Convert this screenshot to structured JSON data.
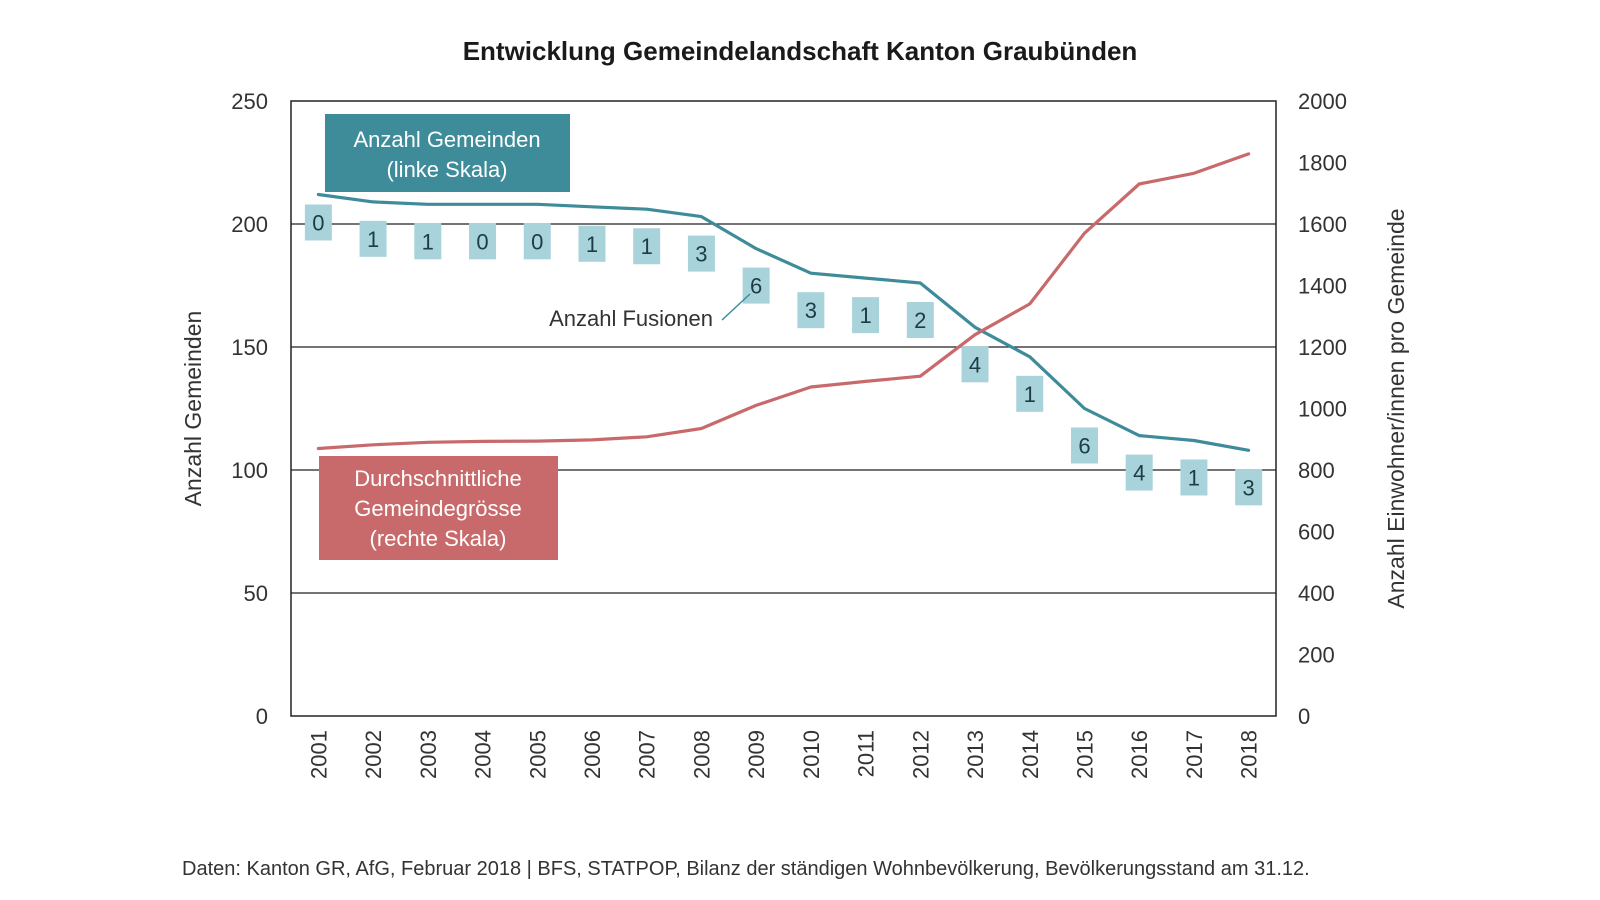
{
  "chart_data": {
    "type": "line",
    "title": "Entwicklung Gemeindelandschaft Kanton Graubünden",
    "categories": [
      "2001",
      "2002",
      "2003",
      "2004",
      "2005",
      "2006",
      "2007",
      "2008",
      "2009",
      "2010",
      "2011",
      "2012",
      "2013",
      "2014",
      "2015",
      "2016",
      "2017",
      "2018"
    ],
    "series": [
      {
        "name": "Anzahl Gemeinden (linke Skala)",
        "axis": "left",
        "color": "#3e8c9a",
        "values": [
          212,
          209,
          208,
          208,
          208,
          207,
          206,
          203,
          190,
          180,
          178,
          176,
          158,
          146,
          125,
          114,
          112,
          108
        ]
      },
      {
        "name": "Durchschnittliche Gemeindegrösse (rechte Skala)",
        "axis": "right",
        "color": "#c86a6b",
        "values": [
          870,
          882,
          890,
          893,
          894,
          898,
          908,
          935,
          1010,
          1070,
          1088,
          1105,
          1240,
          1340,
          1570,
          1730,
          1765,
          1828
        ]
      }
    ],
    "fusions": {
      "label": "Anzahl Fusionen",
      "values": [
        "0",
        "1",
        "1",
        "0",
        "0",
        "1",
        "1",
        "3",
        "6",
        "3",
        "1",
        "2",
        "4",
        "1",
        "6",
        "4",
        "1",
        "3"
      ],
      "color": "#a9d3da"
    },
    "ylabel_left": "Anzahl Gemeinden",
    "ylabel_right": "Anzahl Einwohner/innen pro Gemeinde",
    "ylim_left": [
      0,
      250
    ],
    "ylim_right": [
      0,
      2000
    ],
    "yticks_left": [
      "0",
      "50",
      "100",
      "150",
      "200",
      "250"
    ],
    "yticks_right": [
      "0",
      "200",
      "400",
      "600",
      "800",
      "1000",
      "1200",
      "1400",
      "1600",
      "1800",
      "2000"
    ],
    "grid": true,
    "legend": {
      "gemeinden": {
        "lines": [
          "Anzahl Gemeinden",
          "(linke Skala)"
        ],
        "color": "#3e8c9a"
      },
      "groesse": {
        "lines": [
          "Durchschnittliche",
          "Gemeindegrösse",
          "(rechte Skala)"
        ],
        "color": "#c86a6b"
      }
    },
    "source": "Daten: Kanton GR, AfG, Februar 2018 |  BFS, STATPOP, Bilanz der ständigen Wohnbevölkerung, Bevölkerungsstand am 31.12."
  }
}
